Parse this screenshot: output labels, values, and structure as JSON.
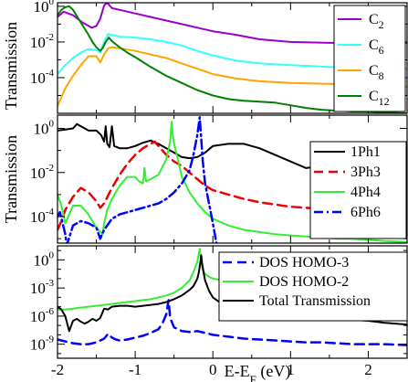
{
  "chart_data": [
    {
      "type": "line",
      "ylabel": "Transmission",
      "xlabel": "",
      "xlim": [
        -2,
        2.5
      ],
      "yscale": "log",
      "ylim_log10": [
        -6,
        0.2
      ],
      "y_ticks": [
        {
          "exp": 0,
          "label": "10",
          "sup": "0"
        },
        {
          "exp": -2,
          "label": "10",
          "sup": "-2"
        },
        {
          "exp": -4,
          "label": "10",
          "sup": "-4"
        }
      ],
      "legend_position": "right",
      "series": [
        {
          "name": "C",
          "sub": "2",
          "color": "#9900cc",
          "dash": "none",
          "width": 2,
          "x": [
            -2,
            -1.92,
            -1.8,
            -1.68,
            -1.56,
            -1.5,
            -1.45,
            -1.4,
            -1.36,
            -1.3,
            -1.2,
            -1.0,
            -0.8,
            -0.6,
            -0.4,
            -0.2,
            0.0,
            0.3,
            0.6,
            1.0,
            1.5,
            2.0,
            2.5
          ],
          "y": [
            -0.6,
            -0.3,
            -0.5,
            -0.9,
            -1.2,
            -1.1,
            -0.7,
            0.05,
            0.2,
            -0.1,
            -0.2,
            -0.4,
            -0.6,
            -0.8,
            -1.0,
            -1.2,
            -1.4,
            -1.6,
            -1.85,
            -2.0,
            -2.05,
            -2.05,
            -2.05
          ]
        },
        {
          "name": "C",
          "sub": "6",
          "color": "#33ffff",
          "dash": "none",
          "width": 2,
          "x": [
            -2,
            -1.9,
            -1.8,
            -1.7,
            -1.6,
            -1.5,
            -1.45,
            -1.4,
            -1.35,
            -1.3,
            -1.2,
            -1.0,
            -0.8,
            -0.6,
            -0.4,
            -0.2,
            0.0,
            0.3,
            0.6,
            1.0,
            1.5,
            2.0,
            2.5
          ],
          "y": [
            -3.8,
            -3.3,
            -2.9,
            -2.6,
            -2.4,
            -2.45,
            -2.6,
            -2.0,
            -1.55,
            -1.6,
            -1.7,
            -1.75,
            -1.85,
            -2.0,
            -2.2,
            -2.5,
            -2.75,
            -3.05,
            -3.2,
            -3.3,
            -3.4,
            -3.45,
            -3.5
          ]
        },
        {
          "name": "C",
          "sub": "8",
          "color": "#ffa500",
          "dash": "none",
          "width": 2,
          "x": [
            -2,
            -1.9,
            -1.8,
            -1.7,
            -1.6,
            -1.5,
            -1.45,
            -1.4,
            -1.35,
            -1.3,
            -1.2,
            -1.0,
            -0.8,
            -0.6,
            -0.4,
            -0.2,
            0.0,
            0.3,
            0.6,
            1.0,
            1.5,
            2.0,
            2.5
          ],
          "y": [
            -5.6,
            -4.6,
            -3.9,
            -3.3,
            -2.8,
            -2.8,
            -3.15,
            -2.7,
            -2.35,
            -2.3,
            -2.35,
            -2.5,
            -2.7,
            -2.9,
            -3.2,
            -3.5,
            -3.8,
            -4.05,
            -4.2,
            -4.3,
            -4.35,
            -4.4,
            -4.5
          ]
        },
        {
          "name": "C",
          "sub": "12",
          "color": "#008000",
          "dash": "none",
          "width": 2,
          "x": [
            -2,
            -1.95,
            -1.9,
            -1.85,
            -1.8,
            -1.7,
            -1.6,
            -1.55,
            -1.5,
            -1.45,
            -1.42,
            -1.38,
            -1.34,
            -1.3,
            -1.2,
            -1.1,
            -1.0,
            -0.8,
            -0.6,
            -0.4,
            -0.2,
            0.0,
            0.2,
            0.4,
            0.6,
            0.8,
            1.0,
            1.2,
            1.4,
            1.6,
            1.8,
            2.0,
            2.2,
            2.5
          ],
          "y": [
            -0.5,
            -0.2,
            -0.05,
            0,
            -0.2,
            -0.9,
            -1.6,
            -2.0,
            -2.3,
            -2.5,
            -2.35,
            -2.0,
            -1.75,
            -1.95,
            -2.3,
            -2.6,
            -2.85,
            -3.4,
            -3.9,
            -4.3,
            -4.7,
            -5.0,
            -5.2,
            -5.3,
            -5.35,
            -5.4,
            -5.55,
            -5.7,
            -5.8,
            -5.85,
            -5.9,
            -5.9,
            -5.95,
            -6.0
          ]
        }
      ]
    },
    {
      "type": "line",
      "ylabel": "Transmission",
      "xlabel": "",
      "xlim": [
        -2,
        2.5
      ],
      "yscale": "log",
      "ylim_log10": [
        -5.2,
        0.6
      ],
      "y_ticks": [
        {
          "exp": 0,
          "label": "10",
          "sup": "0"
        },
        {
          "exp": -2,
          "label": "10",
          "sup": "-2"
        },
        {
          "exp": -4,
          "label": "10",
          "sup": "-4"
        }
      ],
      "legend_position": "right",
      "series": [
        {
          "name": "1Ph1",
          "color": "#000000",
          "dash": "none",
          "width": 2,
          "x": [
            -2,
            -1.9,
            -1.8,
            -1.75,
            -1.7,
            -1.65,
            -1.6,
            -1.5,
            -1.44,
            -1.4,
            -1.38,
            -1.36,
            -1.33,
            -1.3,
            -1.27,
            -1.2,
            -1.1,
            -1.0,
            -0.9,
            -0.8,
            -0.7,
            -0.6,
            -0.5,
            -0.4,
            -0.3,
            -0.2,
            -0.1,
            0.0,
            0.2,
            0.4,
            0.6,
            0.8,
            1.0,
            1.2,
            1.4,
            1.6,
            1.8,
            2.0,
            2.2,
            2.5
          ],
          "y": [
            -0.1,
            -0.05,
            0,
            0.2,
            0.1,
            0,
            -0.1,
            -0.1,
            -0.3,
            -0.6,
            0.1,
            -0.7,
            -0.85,
            0.1,
            -0.8,
            -0.9,
            -0.9,
            -0.8,
            -0.65,
            -0.55,
            -0.7,
            -0.9,
            -1.1,
            -1.3,
            -1.35,
            -1.3,
            -1.1,
            -0.8,
            -0.7,
            -0.7,
            -0.9,
            -1.2,
            -1.5,
            -1.8,
            -1.7,
            -1.55,
            -1.7,
            -1.8,
            -1.85,
            -1.9
          ]
        },
        {
          "name": "3Ph3",
          "color": "#ee0000",
          "dash": "10,6",
          "width": 2.5,
          "x": [
            -2,
            -1.95,
            -1.9,
            -1.8,
            -1.7,
            -1.6,
            -1.5,
            -1.45,
            -1.4,
            -1.3,
            -1.2,
            -1.1,
            -1.0,
            -0.9,
            -0.8,
            -0.75,
            -0.7,
            -0.6,
            -0.5,
            -0.4,
            -0.3,
            -0.2,
            -0.1,
            0.0,
            0.2,
            0.4,
            0.6,
            0.8,
            1.0,
            1.2,
            1.4,
            1.6,
            1.8,
            2.0,
            2.2,
            2.5
          ],
          "y": [
            -4.6,
            -4.2,
            -3.7,
            -3.1,
            -2.7,
            -2.9,
            -3.3,
            -3.6,
            -3.4,
            -2.7,
            -2.1,
            -1.6,
            -1.2,
            -0.9,
            -0.7,
            -0.6,
            -0.8,
            -1.2,
            -1.5,
            -1.7,
            -2.0,
            -2.3,
            -2.6,
            -2.8,
            -3.0,
            -3.2,
            -3.35,
            -3.45,
            -3.55,
            -3.6,
            -3.65,
            -3.7,
            -3.75,
            -3.8,
            -3.8,
            -3.85
          ]
        },
        {
          "name": "4Ph4",
          "color": "#33ee33",
          "dash": "none",
          "width": 2,
          "x": [
            -2,
            -1.95,
            -1.9,
            -1.85,
            -1.8,
            -1.7,
            -1.6,
            -1.5,
            -1.42,
            -1.4,
            -1.36,
            -1.3,
            -1.2,
            -1.1,
            -1.0,
            -0.95,
            -0.9,
            -0.88,
            -0.86,
            -0.8,
            -0.7,
            -0.6,
            -0.55,
            -0.53,
            -0.52,
            -0.5,
            -0.45,
            -0.4,
            -0.3,
            -0.2,
            -0.1,
            0.0,
            0.2,
            0.4,
            0.6,
            0.8,
            1.0,
            1.2,
            1.4,
            1.6,
            1.8,
            2.0,
            2.2,
            2.5
          ],
          "y": [
            -3.0,
            -3.5,
            -4.3,
            -3.9,
            -3.5,
            -3.5,
            -3.9,
            -4.5,
            -4.8,
            -4.3,
            -3.7,
            -3.2,
            -2.6,
            -2.2,
            -2.2,
            -2.4,
            -2.5,
            -1.8,
            -2.4,
            -2.3,
            -2.1,
            -1.4,
            -0.6,
            0.3,
            -0.2,
            -0.7,
            -1.4,
            -2.2,
            -2.9,
            -3.4,
            -3.8,
            -4.1,
            -4.4,
            -4.6,
            -4.7,
            -4.8,
            -4.85,
            -4.9,
            -4.95,
            -5.0,
            -5.0,
            -5.05,
            -5.1,
            -5.15
          ]
        },
        {
          "name": "6Ph6",
          "color": "#0000ff",
          "dash": "10,4,2,4",
          "width": 2.5,
          "x": [
            -2,
            -1.97,
            -1.94,
            -1.9,
            -1.88,
            -1.8,
            -1.7,
            -1.6,
            -1.5,
            -1.45,
            -1.4,
            -1.3,
            -1.2,
            -1.1,
            -1.0,
            -0.9,
            -0.8,
            -0.7,
            -0.6,
            -0.5,
            -0.4,
            -0.3,
            -0.25,
            -0.2,
            -0.17,
            -0.15,
            -0.13,
            -0.1,
            -0.05,
            0.0,
            0.05
          ],
          "y": [
            -4.0,
            -3.8,
            -4.2,
            -4.8,
            -5.3,
            -4.4,
            -4.2,
            -4.3,
            -4.5,
            -5.0,
            -4.6,
            -4.1,
            -3.9,
            -3.8,
            -3.7,
            -3.6,
            -3.5,
            -3.4,
            -3.2,
            -2.9,
            -2.5,
            -1.9,
            -1.2,
            -0.3,
            0.5,
            -0.5,
            -1.5,
            -2.5,
            -3.4,
            -4.3,
            -5.3
          ]
        }
      ]
    },
    {
      "type": "line",
      "ylabel": "",
      "xlabel": "E-E",
      "xlabel_sub": "F",
      "xlabel_tail": " (eV)",
      "xlim": [
        -2,
        2.5
      ],
      "x_ticks": [
        {
          "value": -2,
          "label": "-2"
        },
        {
          "value": -1,
          "label": "-1"
        },
        {
          "value": 0,
          "label": "0"
        },
        {
          "value": 1,
          "label": "1"
        },
        {
          "value": 2,
          "label": "2"
        }
      ],
      "yscale": "log",
      "ylim_log10": [
        -10.5,
        1.5
      ],
      "y_ticks": [
        {
          "exp": 0,
          "label": "10",
          "sup": "0"
        },
        {
          "exp": -3,
          "label": "10",
          "sup": "-3"
        },
        {
          "exp": -6,
          "label": "10",
          "sup": "-6"
        },
        {
          "exp": -9,
          "label": "10",
          "sup": "-9"
        }
      ],
      "legend_position": "top-right",
      "series": [
        {
          "name": "DOS HOMO-3",
          "color": "#0000ff",
          "dash": "10,6",
          "width": 2.5,
          "x": [
            -2,
            -1.9,
            -1.8,
            -1.7,
            -1.6,
            -1.5,
            -1.4,
            -1.35,
            -1.3,
            -1.25,
            -1.2,
            -1.1,
            -1.0,
            -0.9,
            -0.8,
            -0.7,
            -0.65,
            -0.6,
            -0.57,
            -0.55,
            -0.5,
            -0.4,
            -0.3,
            -0.2,
            -0.1,
            0.0,
            0.2,
            0.4,
            0.6,
            0.8,
            1.0,
            1.2,
            1.4,
            1.6,
            1.8,
            2.0,
            2.2,
            2.5
          ],
          "y": [
            -8.5,
            -8.7,
            -8.9,
            -9.0,
            -9.0,
            -8.8,
            -8.4,
            -7.9,
            -8.3,
            -8.5,
            -8.6,
            -8.5,
            -8.3,
            -8.1,
            -7.8,
            -7.4,
            -6.8,
            -5.8,
            -4.3,
            -6.2,
            -7.2,
            -7.6,
            -7.7,
            -7.6,
            -7.8,
            -8.0,
            -8.2,
            -8.4,
            -8.5,
            -8.6,
            -8.7,
            -8.8,
            -8.8,
            -8.9,
            -9.0,
            -9.0,
            -9.0,
            -9.1
          ]
        },
        {
          "name": "DOS HOMO-2",
          "color": "#33ee33",
          "dash": "none",
          "width": 2,
          "x": [
            -2,
            -1.9,
            -1.8,
            -1.7,
            -1.6,
            -1.5,
            -1.4,
            -1.3,
            -1.2,
            -1.1,
            -1.0,
            -0.9,
            -0.8,
            -0.7,
            -0.6,
            -0.5,
            -0.4,
            -0.3,
            -0.25,
            -0.2,
            -0.17,
            -0.15,
            -0.13,
            -0.1,
            -0.05,
            0.0,
            0.2,
            0.4,
            0.6,
            0.8,
            1.0,
            1.2,
            1.4,
            1.6,
            1.8,
            2.0,
            2.2,
            2.5
          ],
          "y": [
            -5.3,
            -5.3,
            -5.2,
            -5.1,
            -5.0,
            -4.9,
            -4.8,
            -4.7,
            -4.6,
            -4.5,
            -4.4,
            -4.3,
            -4.2,
            -4.0,
            -3.8,
            -3.5,
            -3.0,
            -2.2,
            -1.3,
            -0.2,
            1.2,
            -0.2,
            -1.1,
            -1.5,
            -1.8,
            -2.0,
            -2.3,
            -2.6,
            -2.9,
            -3.2,
            -3.5,
            -3.8,
            -4.1,
            -4.5,
            -4.9,
            -5.4,
            -5.8,
            -6.2
          ]
        },
        {
          "name": "Total Transmission",
          "color": "#000000",
          "dash": "none",
          "width": 2,
          "x": [
            -2,
            -1.95,
            -1.9,
            -1.85,
            -1.8,
            -1.75,
            -1.7,
            -1.65,
            -1.6,
            -1.55,
            -1.5,
            -1.45,
            -1.4,
            -1.35,
            -1.3,
            -1.2,
            -1.1,
            -1.0,
            -0.9,
            -0.8,
            -0.7,
            -0.6,
            -0.5,
            -0.4,
            -0.3,
            -0.25,
            -0.2,
            -0.18,
            -0.16,
            -0.15,
            -0.14,
            -0.12,
            -0.1,
            -0.05,
            0.0,
            0.1,
            0.2,
            0.4,
            0.6,
            0.8,
            1.0,
            1.2,
            1.4,
            1.6,
            1.8,
            2.0,
            2.2,
            2.5
          ],
          "y": [
            -5.0,
            -5.3,
            -6.0,
            -7.6,
            -6.5,
            -6.3,
            -6.6,
            -6.8,
            -6.6,
            -6.3,
            -6.5,
            -6.2,
            -5.2,
            -5.3,
            -5.0,
            -4.9,
            -4.9,
            -5.0,
            -4.9,
            -4.8,
            -4.7,
            -4.5,
            -4.2,
            -3.8,
            -3.2,
            -2.8,
            -2.0,
            -1.3,
            -0.2,
            0.5,
            -0.3,
            -1.3,
            -2.2,
            -3.3,
            -4.0,
            -4.6,
            -5.0,
            -5.4,
            -5.6,
            -5.6,
            -5.8,
            -6.0,
            -6.2,
            -6.3,
            -6.4,
            -6.5,
            -6.7,
            -6.9
          ]
        }
      ]
    }
  ]
}
